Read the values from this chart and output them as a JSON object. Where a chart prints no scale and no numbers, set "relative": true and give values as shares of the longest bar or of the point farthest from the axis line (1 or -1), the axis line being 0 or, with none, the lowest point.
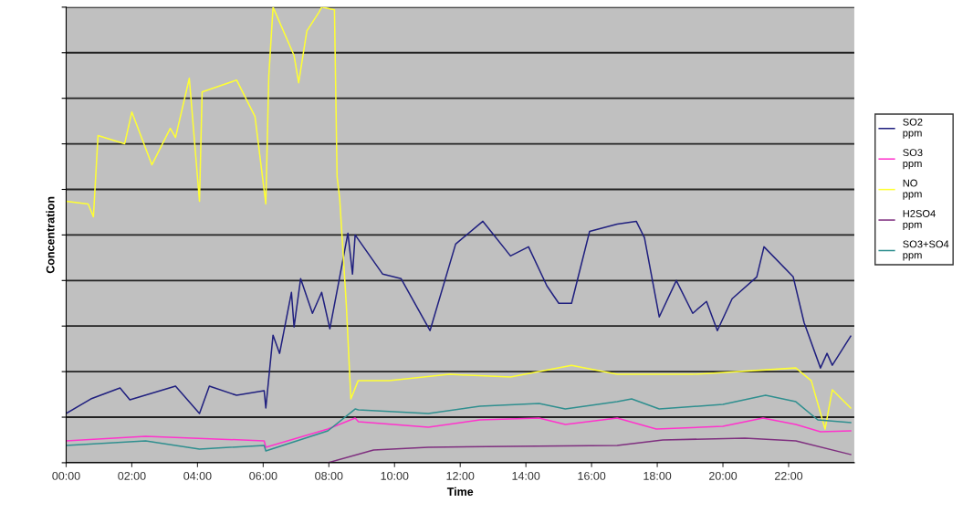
{
  "chart_data": {
    "type": "line",
    "relative": true,
    "xlabel": "Time",
    "ylabel": "Concentration",
    "xlim": [
      0,
      24
    ],
    "xticks": [
      {
        "value": 0,
        "label": "00:00"
      },
      {
        "value": 2,
        "label": "02:00"
      },
      {
        "value": 4,
        "label": "04:00"
      },
      {
        "value": 6,
        "label": "06:00"
      },
      {
        "value": 8,
        "label": "08:00"
      },
      {
        "value": 10,
        "label": "10:00"
      },
      {
        "value": 12,
        "label": "12:00"
      },
      {
        "value": 14,
        "label": "14:00"
      },
      {
        "value": 16,
        "label": "16:00"
      },
      {
        "value": 18,
        "label": "18:00"
      },
      {
        "value": 20,
        "label": "20:00"
      },
      {
        "value": 22,
        "label": "22:00"
      }
    ],
    "grid": "y",
    "legend": "right",
    "tick_labels": "x",
    "marker": "none",
    "line_style": "solid",
    "series": [
      {
        "name": "SO2\nppm",
        "color": "#20207f",
        "x": [
          0,
          0.75,
          1.64,
          1.94,
          3.33,
          4.06,
          4.36,
          5.19,
          6.03,
          6.08,
          6.3,
          6.5,
          6.86,
          6.94,
          7.14,
          7.5,
          7.78,
          8.03,
          8.33,
          8.58,
          8.72,
          8.8,
          9.64,
          10.2,
          11.08,
          11.86,
          12.69,
          13.53,
          14.08,
          14.64,
          15,
          15.39,
          15.94,
          16.78,
          17.36,
          17.61,
          18.06,
          18.58,
          19.08,
          19.5,
          19.83,
          20.28,
          21.03,
          21.25,
          22.14,
          22.47,
          22.97,
          23.17,
          23.33,
          23.89
        ],
        "values": [
          0.108,
          0.14,
          0.164,
          0.138,
          0.168,
          0.108,
          0.168,
          0.148,
          0.158,
          0.12,
          0.28,
          0.24,
          0.374,
          0.298,
          0.404,
          0.328,
          0.374,
          0.294,
          0.408,
          0.504,
          0.414,
          0.5,
          0.414,
          0.404,
          0.29,
          0.48,
          0.53,
          0.454,
          0.474,
          0.388,
          0.35,
          0.35,
          0.508,
          0.524,
          0.53,
          0.494,
          0.32,
          0.4,
          0.328,
          0.354,
          0.29,
          0.36,
          0.408,
          0.474,
          0.408,
          0.308,
          0.208,
          0.24,
          0.214,
          0.278
        ]
      },
      {
        "name": "SO3\nppm",
        "color": "#ff33cc",
        "x": [
          0,
          2.42,
          6.03,
          6.08,
          7.97,
          8.8,
          8.9,
          11.03,
          12.6,
          14.4,
          15.2,
          16.78,
          17.97,
          20,
          21.22,
          22.22,
          22.97,
          23.89
        ],
        "values": [
          0.048,
          0.058,
          0.048,
          0.034,
          0.074,
          0.098,
          0.09,
          0.078,
          0.094,
          0.098,
          0.084,
          0.098,
          0.074,
          0.08,
          0.098,
          0.084,
          0.068,
          0.07
        ]
      },
      {
        "name": "NO\nppm",
        "color": "#ffff33",
        "x": [
          0,
          0.67,
          0.83,
          0.97,
          1.78,
          2.0,
          2.61,
          3.17,
          3.33,
          3.75,
          4.06,
          4.14,
          5.19,
          5.75,
          6.08,
          6.17,
          6.3,
          6.94,
          7.08,
          7.33,
          7.69,
          7.78,
          8.17,
          8.25,
          8.33,
          8.53,
          8.67,
          8.89,
          9.83,
          11.67,
          13.53,
          15.39,
          16.78,
          19.08,
          22.22,
          22.69,
          23.11,
          23.33,
          23.89
        ],
        "values": [
          0.574,
          0.568,
          0.54,
          0.718,
          0.7,
          0.77,
          0.654,
          0.734,
          0.714,
          0.844,
          0.574,
          0.814,
          0.84,
          0.76,
          0.568,
          0.848,
          1.0,
          0.894,
          0.834,
          0.948,
          0.988,
          1.0,
          0.994,
          0.628,
          0.58,
          0.348,
          0.14,
          0.18,
          0.18,
          0.194,
          0.188,
          0.214,
          0.194,
          0.194,
          0.208,
          0.18,
          0.074,
          0.16,
          0.12
        ]
      },
      {
        "name": "H2SO4\nppm",
        "color": "#7f2f7f",
        "x": [
          7.97,
          9.36,
          11.03,
          13.53,
          16.78,
          18.17,
          20.67,
          22.22,
          23.89
        ],
        "values": [
          0,
          0.028,
          0.034,
          0.036,
          0.038,
          0.05,
          0.054,
          0.048,
          0.018
        ]
      },
      {
        "name": "SO3+SO4\nppm",
        "color": "#2f8f8f",
        "x": [
          0,
          2.42,
          4.06,
          6.03,
          6.08,
          7.97,
          8.8,
          8.9,
          11.03,
          12.6,
          14.4,
          15.2,
          16.78,
          17.22,
          18.06,
          20,
          21.3,
          22.22,
          22.89,
          23.89
        ],
        "values": [
          0.038,
          0.048,
          0.03,
          0.038,
          0.026,
          0.07,
          0.118,
          0.116,
          0.108,
          0.124,
          0.13,
          0.118,
          0.134,
          0.14,
          0.118,
          0.128,
          0.148,
          0.134,
          0.094,
          0.088
        ]
      }
    ]
  }
}
